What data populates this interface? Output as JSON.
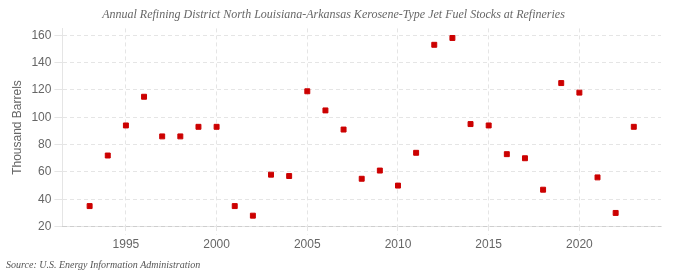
{
  "chart_data": {
    "type": "scatter",
    "title": "Annual Refining District North Louisiana-Arkansas Kerosene-Type Jet Fuel Stocks at Refineries",
    "ylabel": "Thousand Barrels",
    "annotations": [
      "Source: U.S. Energy Information Administration"
    ],
    "x": [
      1993,
      1994,
      1995,
      1996,
      1997,
      1998,
      1999,
      2000,
      2001,
      2002,
      2003,
      2004,
      2005,
      2006,
      2007,
      2008,
      2009,
      2010,
      2011,
      2012,
      2013,
      2014,
      2015,
      2016,
      2017,
      2018,
      2019,
      2020,
      2021,
      2022,
      2023
    ],
    "values": [
      35,
      72,
      94,
      115,
      86,
      86,
      93,
      93,
      35,
      28,
      58,
      57,
      119,
      105,
      91,
      55,
      61,
      50,
      74,
      153,
      158,
      95,
      94,
      73,
      70,
      47,
      125,
      118,
      56,
      30,
      93
    ],
    "color": "#cc0000",
    "marker": "square",
    "xlim": [
      1991.5,
      2024.5
    ],
    "xticks": [
      1995,
      2000,
      2005,
      2010,
      2015,
      2020
    ],
    "ylim": [
      20,
      165
    ],
    "yticks": [
      20,
      40,
      60,
      80,
      100,
      120,
      140,
      160
    ],
    "grid": true
  }
}
